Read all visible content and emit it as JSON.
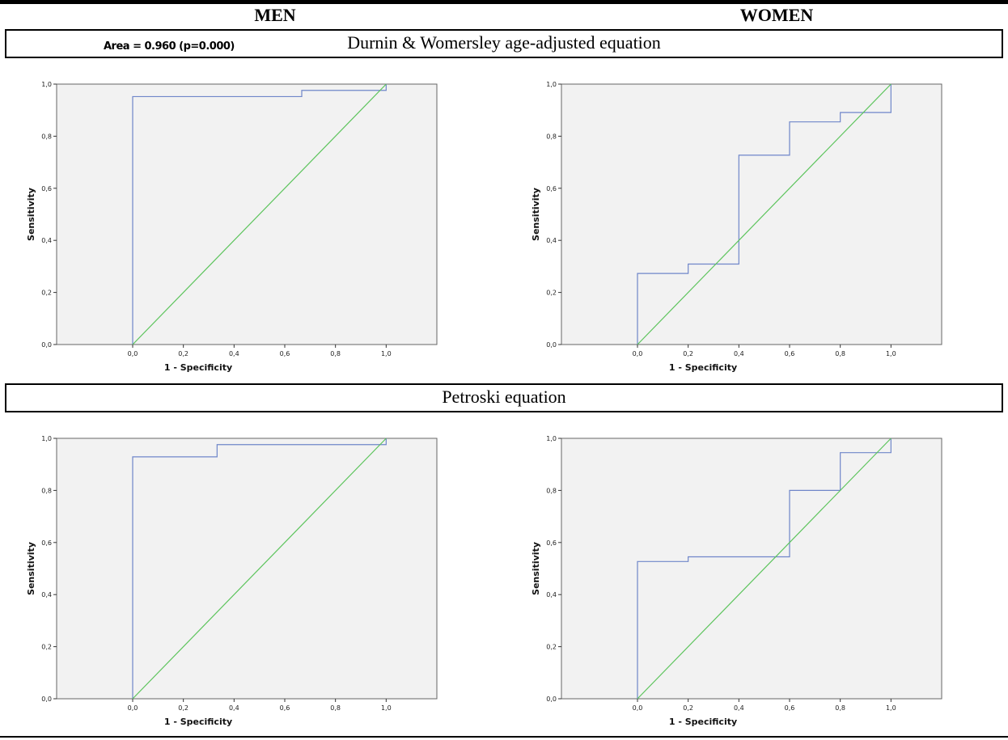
{
  "header": {
    "col_men": "MEN",
    "col_women": "WOMEN"
  },
  "sections": [
    {
      "title": "Durnin & Womersley age-adjusted equation",
      "overlay_text": "Area = 0.960 (p=0.000)"
    },
    {
      "title": "Petroski equation",
      "overlay_text": ""
    }
  ],
  "colors": {
    "roc_line": "#6f86c9",
    "reference_line": "#5cc45c",
    "plot_background": "#f2f2f2",
    "plot_frame": "#666666"
  },
  "chart_data": [
    {
      "type": "line",
      "xlabel": "1 - Specificity",
      "ylabel": "Sensitivity",
      "xlim": [
        -0.3,
        1.2
      ],
      "ylim": [
        0,
        1
      ],
      "x_ticks": [
        "0,0",
        "0,2",
        "0,4",
        "0,6",
        "0,8",
        "1,0"
      ],
      "y_ticks": [
        "0,0",
        "0,2",
        "0,4",
        "0,6",
        "0,8",
        "1,0"
      ],
      "series": [
        {
          "x": [
            0,
            0,
            0.667,
            0.667,
            1.0,
            1.0
          ],
          "y": [
            0,
            0.952,
            0.952,
            0.976,
            0.976,
            1.0
          ]
        },
        {
          "x": [
            0,
            1
          ],
          "y": [
            0,
            1
          ]
        }
      ]
    },
    {
      "type": "line",
      "xlabel": "1 - Specificity",
      "ylabel": "Sensitivity",
      "xlim": [
        -0.3,
        1.2
      ],
      "ylim": [
        0,
        1
      ],
      "x_ticks": [
        "0,0",
        "0,2",
        "0,4",
        "0,6",
        "0,8",
        "1,0"
      ],
      "y_ticks": [
        "0,0",
        "0,2",
        "0,4",
        "0,6",
        "0,8",
        "1,0"
      ],
      "series": [
        {
          "x": [
            0,
            0,
            0.2,
            0.2,
            0.4,
            0.4,
            0.6,
            0.6,
            0.8,
            0.8,
            1.0,
            1.0
          ],
          "y": [
            0,
            0.273,
            0.273,
            0.309,
            0.309,
            0.727,
            0.727,
            0.855,
            0.855,
            0.891,
            0.891,
            1.0
          ]
        },
        {
          "x": [
            0,
            1
          ],
          "y": [
            0,
            1
          ]
        }
      ]
    },
    {
      "type": "line",
      "xlabel": "1 - Specificity",
      "ylabel": "Sensitivity",
      "xlim": [
        -0.3,
        1.2
      ],
      "ylim": [
        0,
        1
      ],
      "x_ticks": [
        "0,0",
        "0,2",
        "0,4",
        "0,6",
        "0,8",
        "1,0"
      ],
      "y_ticks": [
        "0,0",
        "0,2",
        "0,4",
        "0,6",
        "0,8",
        "1,0"
      ],
      "series": [
        {
          "x": [
            0,
            0,
            0.333,
            0.333,
            1.0,
            1.0
          ],
          "y": [
            0,
            0.929,
            0.929,
            0.976,
            0.976,
            1.0
          ]
        },
        {
          "x": [
            0,
            1
          ],
          "y": [
            0,
            1
          ]
        }
      ]
    },
    {
      "type": "line",
      "xlabel": "1 - Specificity",
      "ylabel": "Sensitivity",
      "xlim": [
        -0.3,
        1.2
      ],
      "ylim": [
        0,
        1
      ],
      "x_ticks": [
        "0,0",
        "0,2",
        "0,4",
        "0,6",
        "0,8",
        "1,0"
      ],
      "y_ticks": [
        "0,0",
        "0,2",
        "0,4",
        "0,6",
        "0,8",
        "1,0"
      ],
      "series": [
        {
          "x": [
            0,
            0,
            0.2,
            0.2,
            0.6,
            0.6,
            0.8,
            0.8,
            1.0,
            1.0
          ],
          "y": [
            0,
            0.527,
            0.527,
            0.545,
            0.545,
            0.8,
            0.8,
            0.945,
            0.945,
            1.0
          ]
        },
        {
          "x": [
            0,
            1
          ],
          "y": [
            0,
            1
          ]
        }
      ]
    }
  ]
}
